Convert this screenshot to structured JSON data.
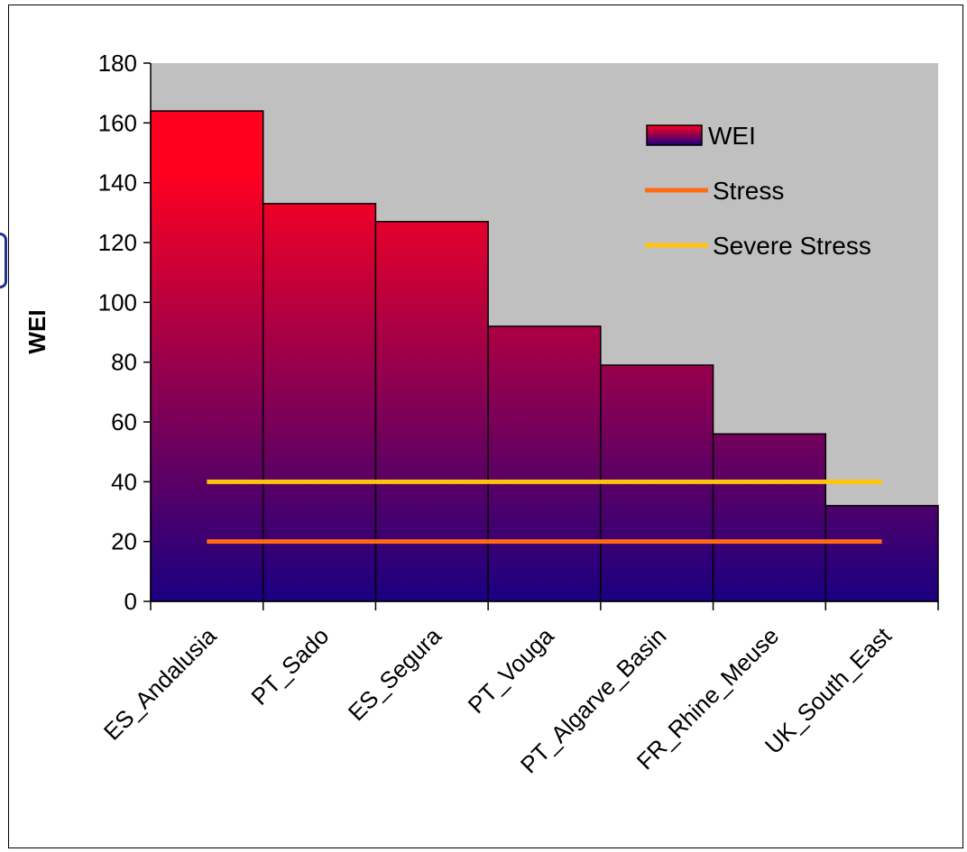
{
  "colors": {
    "plot_bg": "#c0c0c0",
    "bar_top": "#ff0020",
    "bar_bottom": "#1a0080",
    "stress": "#ff6a13",
    "severe_stress": "#ffc20e",
    "axis": "#000000"
  },
  "chart_data": {
    "type": "bar",
    "ylabel": "WEI",
    "xlabel": "",
    "ylim": [
      0,
      180
    ],
    "yticks": [
      0,
      20,
      40,
      60,
      80,
      100,
      120,
      140,
      160,
      180
    ],
    "categories": [
      "ES_Andalusia",
      "PT_Sado",
      "ES_Segura",
      "PT_Vouga",
      "PT_Algarve_Basin",
      "FR_Rhine_Meuse",
      "UK_South_East"
    ],
    "series": [
      {
        "name": "WEI",
        "type": "bar",
        "values": [
          164,
          133,
          127,
          92,
          79,
          56,
          32
        ]
      },
      {
        "name": "Stress",
        "type": "line",
        "values": [
          20,
          20,
          20,
          20,
          20,
          20,
          20
        ]
      },
      {
        "name": "Severe Stress",
        "type": "line",
        "values": [
          40,
          40,
          40,
          40,
          40,
          40,
          40
        ]
      }
    ],
    "grid": false,
    "legend_position": "top-right"
  }
}
